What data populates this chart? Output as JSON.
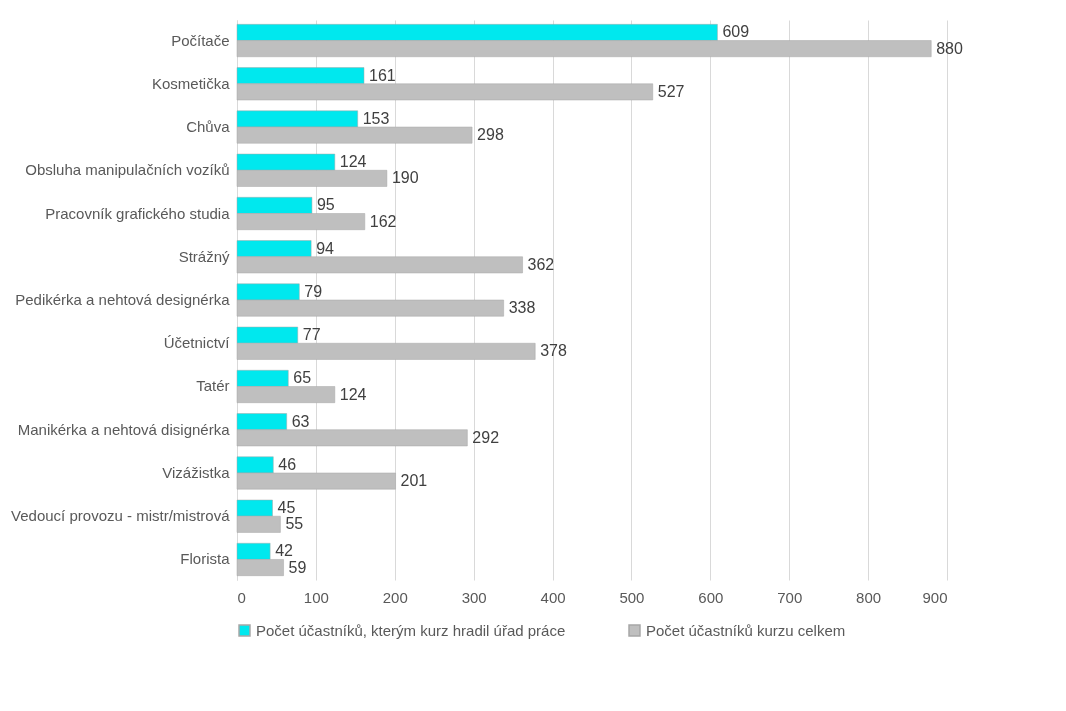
{
  "chart_data": {
    "type": "bar",
    "orientation": "horizontal",
    "categories": [
      "Počítače",
      "Kosmetička",
      "Chůva",
      "Obsluha manipulačních vozíků",
      "Pracovník grafického studia",
      "Strážný",
      "Pedikérka a nehtová designérka",
      "Účetnictví",
      "Tatér",
      "Manikérka a nehtová disignérka",
      "Vizážistka",
      "Vedoucí provozu - mistr/mistrová",
      "Florista"
    ],
    "series": [
      {
        "name": "Počet účastníků, kterým kurz hradil úřad práce",
        "color": "#00e8ee",
        "values": [
          609,
          161,
          153,
          124,
          95,
          94,
          79,
          77,
          65,
          63,
          46,
          45,
          42
        ]
      },
      {
        "name": "Počet účastníků kurzu celkem",
        "color": "#bfbfbf",
        "values": [
          880,
          527,
          298,
          190,
          162,
          362,
          338,
          378,
          124,
          292,
          201,
          55,
          59
        ]
      }
    ],
    "xlim": [
      0,
      900
    ],
    "xticks": [
      0,
      100,
      200,
      300,
      400,
      500,
      600,
      700,
      800,
      900
    ],
    "grid": "x",
    "legend": "bottom",
    "data_labels": true
  }
}
